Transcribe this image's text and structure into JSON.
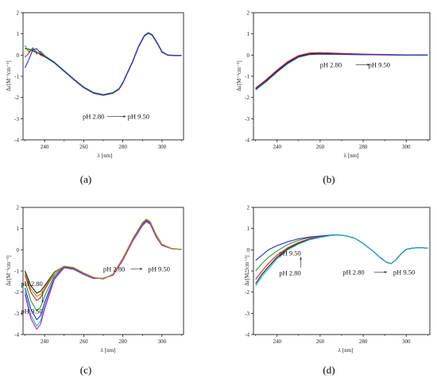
{
  "figure": {
    "y_label": "Δε[M⁻¹cm⁻¹]",
    "x_label": "λ [nm]",
    "palette": [
      "#1a1a1a",
      "#d42020",
      "#2aa02a",
      "#2a2ad0",
      "#20b0c0",
      "#c020c0",
      "#9a9a20",
      "#8a4a1a",
      "#7030a0"
    ]
  },
  "chart_data": [
    {
      "type": "line",
      "caption": "(a)",
      "xlim": [
        229,
        311
      ],
      "ylim": [
        -4,
        2
      ],
      "x_ticks": [
        240,
        260,
        280,
        300
      ],
      "y_ticks": [
        2,
        1,
        0,
        -1,
        -2,
        -3,
        -4
      ],
      "annotations": [
        {
          "text": "pH 2.80",
          "x": 265,
          "y": -2.9
        },
        {
          "text": "pH 9.50",
          "x": 288,
          "y": -2.9
        }
      ],
      "arrows": [
        {
          "from": [
            272,
            -2.9
          ],
          "to": [
            281.5,
            -2.9
          ]
        }
      ],
      "series": [
        {
          "x": [
            230,
            232,
            234,
            236,
            238,
            240,
            245,
            250,
            255,
            260,
            265,
            270,
            275,
            278,
            280,
            285,
            288,
            291,
            293,
            295,
            298,
            300,
            303,
            306,
            310
          ],
          "y": [
            0.3,
            0.28,
            0.2,
            0.12,
            0.05,
            -0.05,
            -0.35,
            -0.75,
            -1.15,
            -1.52,
            -1.78,
            -1.88,
            -1.78,
            -1.6,
            -1.3,
            -0.3,
            0.4,
            0.92,
            1.05,
            0.95,
            0.5,
            0.15,
            0.0,
            -0.02,
            -0.02
          ]
        },
        {
          "x": [
            230,
            232,
            234,
            236,
            238,
            240,
            245,
            250,
            255,
            260,
            265,
            270,
            275,
            278,
            280,
            285,
            288,
            291,
            293,
            295,
            298,
            300,
            303,
            306,
            310
          ],
          "y": [
            -0.1,
            0.1,
            0.3,
            0.15,
            0.0,
            -0.08,
            -0.37,
            -0.77,
            -1.17,
            -1.54,
            -1.8,
            -1.9,
            -1.8,
            -1.62,
            -1.32,
            -0.32,
            0.38,
            0.9,
            1.03,
            0.93,
            0.48,
            0.13,
            -0.01,
            -0.03,
            -0.03
          ]
        },
        {
          "x": [
            230,
            232,
            234,
            236,
            238,
            240,
            245,
            250,
            255,
            260,
            265,
            270,
            275,
            278,
            280,
            285,
            288,
            291,
            293,
            295,
            298,
            300,
            303,
            306,
            310
          ],
          "y": [
            0.45,
            0.15,
            0.35,
            0.05,
            0.18,
            -0.02,
            -0.33,
            -0.73,
            -1.13,
            -1.5,
            -1.76,
            -1.86,
            -1.76,
            -1.58,
            -1.28,
            -0.28,
            0.42,
            0.94,
            1.07,
            0.97,
            0.52,
            0.17,
            0.01,
            -0.01,
            -0.01
          ]
        },
        {
          "x": [
            230,
            232,
            234,
            236,
            238,
            240,
            245,
            250,
            255,
            260,
            265,
            270,
            275,
            278,
            280,
            285,
            288,
            291,
            293,
            295,
            298,
            300,
            303,
            306,
            310
          ],
          "y": [
            -0.6,
            -0.2,
            0.25,
            0.3,
            0.1,
            -0.06,
            -0.36,
            -0.76,
            -1.16,
            -1.53,
            -1.79,
            -1.89,
            -1.79,
            -1.61,
            -1.31,
            -0.31,
            0.39,
            0.91,
            1.04,
            0.94,
            0.49,
            0.14,
            0.0,
            -0.02,
            -0.02
          ]
        }
      ]
    },
    {
      "type": "line",
      "caption": "(b)",
      "xlim": [
        229,
        311
      ],
      "ylim": [
        -4,
        2
      ],
      "x_ticks": [
        240,
        260,
        280,
        300
      ],
      "y_ticks": [
        2,
        1,
        0,
        -1,
        -2,
        -3,
        -4
      ],
      "annotations": [
        {
          "text": "pH 2.80",
          "x": 265,
          "y": -0.45
        },
        {
          "text": "pH 9.50",
          "x": 287.5,
          "y": -0.45
        }
      ],
      "arrows": [
        {
          "from": [
            276.5,
            -0.45
          ],
          "to": [
            283,
            -0.45
          ]
        }
      ],
      "series": [
        {
          "x": [
            230,
            235,
            240,
            245,
            250,
            255,
            260,
            270,
            280,
            290,
            300,
            310
          ],
          "y": [
            -1.6,
            -1.2,
            -0.75,
            -0.35,
            -0.05,
            0.06,
            0.08,
            0.05,
            0.03,
            0.02,
            0.01,
            0.0
          ]
        },
        {
          "x": [
            230,
            235,
            240,
            245,
            250,
            255,
            260,
            270,
            280,
            290,
            300,
            310
          ],
          "y": [
            -1.55,
            -1.15,
            -0.7,
            -0.3,
            -0.02,
            0.1,
            0.12,
            0.08,
            0.05,
            0.03,
            0.01,
            0.0
          ]
        },
        {
          "x": [
            230,
            235,
            240,
            245,
            250,
            255,
            260,
            270,
            280,
            290,
            300,
            310
          ],
          "y": [
            -1.65,
            -1.25,
            -0.8,
            -0.4,
            -0.1,
            0.02,
            0.04,
            0.03,
            0.02,
            0.01,
            0.0,
            0.0
          ]
        },
        {
          "x": [
            230,
            235,
            240,
            245,
            250,
            255,
            260,
            270,
            280,
            290,
            300,
            310
          ],
          "y": [
            -1.6,
            -1.22,
            -0.78,
            -0.38,
            -0.08,
            0.04,
            0.06,
            0.04,
            0.02,
            0.01,
            0.0,
            0.0
          ]
        }
      ]
    },
    {
      "type": "line",
      "caption": "(c)",
      "xlim": [
        229,
        311
      ],
      "ylim": [
        -4,
        2
      ],
      "x_ticks": [
        240,
        260,
        280,
        300
      ],
      "y_ticks": [
        2,
        1,
        0,
        -1,
        -2,
        -3,
        -4
      ],
      "annotations": [
        {
          "text": "pH 2.80",
          "x": 275.5,
          "y": -0.9
        },
        {
          "text": "pH 9.50",
          "x": 298.5,
          "y": -0.9
        },
        {
          "text": "pH 2.80",
          "x": 233.5,
          "y": -1.6
        },
        {
          "text": "pH 9.50",
          "x": 233.5,
          "y": -2.9
        }
      ],
      "arrows": [
        {
          "from": [
            284,
            -0.9
          ],
          "to": [
            290,
            -0.9
          ]
        },
        {
          "from": [
            239,
            -1.95
          ],
          "to": [
            239,
            -2.5
          ]
        }
      ],
      "series": [
        {
          "x": [
            230,
            233,
            236,
            238,
            240,
            245,
            250,
            255,
            260,
            265,
            270,
            275,
            280,
            285,
            290,
            292,
            294,
            297,
            300,
            305,
            310
          ],
          "y": [
            -1.0,
            -1.7,
            -2.05,
            -1.95,
            -1.7,
            -1.05,
            -0.78,
            -0.85,
            -1.1,
            -1.3,
            -1.38,
            -1.15,
            -0.4,
            0.5,
            1.25,
            1.42,
            1.3,
            0.7,
            0.25,
            0.05,
            0.02
          ]
        },
        {
          "x": [
            230,
            233,
            236,
            238,
            240,
            245,
            250,
            255,
            260,
            265,
            270,
            275,
            280,
            285,
            290,
            292,
            294,
            297,
            300,
            305,
            310
          ],
          "y": [
            -1.2,
            -2.0,
            -2.4,
            -2.25,
            -1.9,
            -1.1,
            -0.78,
            -0.86,
            -1.12,
            -1.32,
            -1.38,
            -1.16,
            -0.42,
            0.48,
            1.22,
            1.4,
            1.28,
            0.68,
            0.24,
            0.05,
            0.02
          ]
        },
        {
          "x": [
            230,
            233,
            236,
            238,
            240,
            245,
            250,
            255,
            260,
            265,
            270,
            275,
            280,
            285,
            290,
            292,
            294,
            297,
            300,
            305,
            310
          ],
          "y": [
            -1.5,
            -2.4,
            -2.9,
            -2.7,
            -2.2,
            -1.2,
            -0.8,
            -0.88,
            -1.14,
            -1.33,
            -1.37,
            -1.17,
            -0.44,
            0.46,
            1.2,
            1.38,
            1.26,
            0.66,
            0.23,
            0.05,
            0.02
          ]
        },
        {
          "x": [
            230,
            233,
            236,
            238,
            240,
            245,
            250,
            255,
            260,
            265,
            270,
            275,
            280,
            285,
            290,
            292,
            294,
            297,
            300,
            305,
            310
          ],
          "y": [
            -1.8,
            -2.8,
            -3.3,
            -3.1,
            -2.5,
            -1.3,
            -0.82,
            -0.9,
            -1.15,
            -1.34,
            -1.36,
            -1.18,
            -0.46,
            0.44,
            1.18,
            1.36,
            1.24,
            0.64,
            0.22,
            0.05,
            0.02
          ]
        },
        {
          "x": [
            230,
            233,
            236,
            238,
            240,
            245,
            250,
            255,
            260,
            265,
            270,
            275,
            280,
            285,
            290,
            292,
            294,
            297,
            300,
            305,
            310
          ],
          "y": [
            -2.0,
            -3.1,
            -3.6,
            -3.35,
            -2.7,
            -1.35,
            -0.84,
            -0.92,
            -1.16,
            -1.35,
            -1.35,
            -1.19,
            -0.48,
            0.42,
            1.16,
            1.34,
            1.22,
            0.62,
            0.21,
            0.05,
            0.02
          ]
        },
        {
          "x": [
            230,
            233,
            236,
            238,
            240,
            245,
            250,
            255,
            260,
            265,
            270,
            275,
            280,
            285,
            290,
            292,
            294,
            297,
            300,
            305,
            310
          ],
          "y": [
            -2.1,
            -3.25,
            -3.75,
            -3.5,
            -2.8,
            -1.4,
            -0.85,
            -0.93,
            -1.17,
            -1.36,
            -1.34,
            -1.2,
            -0.5,
            0.4,
            1.14,
            1.32,
            1.2,
            0.6,
            0.2,
            0.05,
            0.02
          ]
        },
        {
          "x": [
            230,
            233,
            236,
            238,
            240,
            245,
            250,
            255,
            260,
            265,
            270,
            275,
            280,
            285,
            290,
            292,
            294,
            297,
            300,
            305,
            310
          ],
          "y": [
            -1.1,
            -1.85,
            -2.2,
            -2.1,
            -1.8,
            -1.08,
            -0.77,
            -0.84,
            -1.1,
            -1.3,
            -1.38,
            -1.15,
            -0.41,
            0.52,
            1.28,
            1.45,
            1.33,
            0.72,
            0.26,
            0.06,
            0.02
          ]
        }
      ]
    },
    {
      "type": "line",
      "caption": "(d)",
      "xlim": [
        229,
        311
      ],
      "ylim": [
        -4,
        2
      ],
      "x_ticks": [
        240,
        260,
        280,
        300
      ],
      "y_ticks": [
        2,
        1,
        0,
        -1,
        -2,
        -3,
        -4
      ],
      "annotations": [
        {
          "text": "pH 9.50",
          "x": 246,
          "y": -0.15
        },
        {
          "text": "pH 2.80",
          "x": 246,
          "y": -1.1
        },
        {
          "text": "pH 2.80",
          "x": 275.5,
          "y": -1.05
        },
        {
          "text": "pH 9.50",
          "x": 299,
          "y": -1.05
        }
      ],
      "arrows": [
        {
          "from": [
            251,
            -0.85
          ],
          "to": [
            251,
            -0.35
          ]
        },
        {
          "from": [
            285,
            -1.05
          ],
          "to": [
            291,
            -1.05
          ]
        }
      ],
      "series": [
        {
          "x": [
            230,
            233,
            236,
            240,
            245,
            250,
            255,
            260,
            265,
            268,
            272,
            276,
            280,
            285,
            288,
            291,
            293,
            295,
            298,
            300,
            303,
            306,
            310
          ],
          "y": [
            -1.6,
            -1.15,
            -0.8,
            -0.35,
            0.05,
            0.3,
            0.5,
            0.6,
            0.68,
            0.7,
            0.66,
            0.55,
            0.3,
            -0.1,
            -0.38,
            -0.6,
            -0.65,
            -0.5,
            -0.15,
            0.02,
            0.08,
            0.1,
            0.08
          ]
        },
        {
          "x": [
            230,
            233,
            236,
            240,
            245,
            250,
            255,
            260,
            265,
            268,
            272,
            276,
            280,
            285,
            288,
            291,
            293,
            295,
            298,
            300,
            303,
            306,
            310
          ],
          "y": [
            -1.4,
            -1.0,
            -0.65,
            -0.25,
            0.1,
            0.35,
            0.52,
            0.61,
            0.68,
            0.7,
            0.66,
            0.55,
            0.3,
            -0.1,
            -0.38,
            -0.6,
            -0.65,
            -0.5,
            -0.15,
            0.02,
            0.08,
            0.1,
            0.08
          ]
        },
        {
          "x": [
            230,
            233,
            236,
            240,
            245,
            250,
            255,
            260,
            265,
            268,
            272,
            276,
            280,
            285,
            288,
            291,
            293,
            295,
            298,
            300,
            303,
            306,
            310
          ],
          "y": [
            -1.0,
            -0.65,
            -0.35,
            -0.05,
            0.25,
            0.45,
            0.57,
            0.64,
            0.69,
            0.7,
            0.66,
            0.55,
            0.3,
            -0.1,
            -0.38,
            -0.6,
            -0.65,
            -0.5,
            -0.15,
            0.02,
            0.08,
            0.1,
            0.08
          ]
        },
        {
          "x": [
            230,
            233,
            236,
            240,
            245,
            250,
            255,
            260,
            265,
            268,
            272,
            276,
            280,
            285,
            288,
            291,
            293,
            295,
            298,
            300,
            303,
            306,
            310
          ],
          "y": [
            -0.5,
            -0.25,
            0.0,
            0.2,
            0.38,
            0.52,
            0.6,
            0.65,
            0.69,
            0.7,
            0.66,
            0.55,
            0.3,
            -0.1,
            -0.38,
            -0.6,
            -0.65,
            -0.5,
            -0.15,
            0.02,
            0.08,
            0.1,
            0.08
          ]
        },
        {
          "x": [
            230,
            233,
            236,
            240,
            245,
            250,
            255,
            260,
            265,
            268,
            272,
            276,
            280,
            285,
            288,
            291,
            293,
            295,
            298,
            300,
            303,
            306,
            310
          ],
          "y": [
            -1.7,
            -1.25,
            -0.9,
            -0.42,
            0.0,
            0.27,
            0.47,
            0.58,
            0.67,
            0.7,
            0.66,
            0.55,
            0.3,
            -0.1,
            -0.38,
            -0.6,
            -0.65,
            -0.5,
            -0.15,
            0.02,
            0.08,
            0.1,
            0.08
          ]
        }
      ]
    }
  ]
}
